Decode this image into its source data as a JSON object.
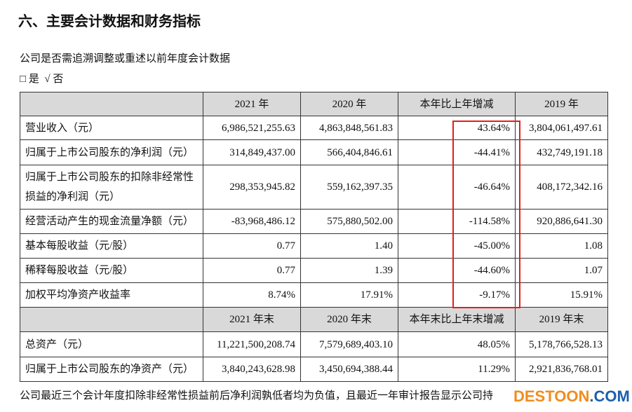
{
  "header": {
    "title": "六、主要会计数据和财务指标"
  },
  "question": "公司是否需追溯调整或重述以前年度会计数据",
  "options": {
    "yes_box": "□",
    "yes": "是",
    "no_check": "√",
    "no": "否"
  },
  "table": {
    "header1": [
      "2021 年",
      "2020 年",
      "本年比上年增减",
      "2019 年"
    ],
    "rows1": [
      [
        "营业收入（元）",
        "6,986,521,255.63",
        "4,863,848,561.83",
        "43.64%",
        "3,804,061,497.61"
      ],
      [
        "归属于上市公司股东的净利润（元）",
        "314,849,437.00",
        "566,404,846.61",
        "-44.41%",
        "432,749,191.18"
      ],
      [
        "归属于上市公司股东的扣除非经常性损益的净利润（元）",
        "298,353,945.82",
        "559,162,397.35",
        "-46.64%",
        "408,172,342.16"
      ],
      [
        "经营活动产生的现金流量净额（元）",
        "-83,968,486.12",
        "575,880,502.00",
        "-114.58%",
        "920,886,641.30"
      ],
      [
        "基本每股收益（元/股）",
        "0.77",
        "1.40",
        "-45.00%",
        "1.08"
      ],
      [
        "稀释每股收益（元/股）",
        "0.77",
        "1.39",
        "-44.60%",
        "1.07"
      ],
      [
        "加权平均净资产收益率",
        "8.74%",
        "17.91%",
        "-9.17%",
        "15.91%"
      ]
    ],
    "header2": [
      "2021 年末",
      "2020 年末",
      "本年末比上年末增减",
      "2019 年末"
    ],
    "rows2": [
      [
        "总资产（元）",
        "11,221,500,208.74",
        "7,579,689,403.10",
        "48.05%",
        "5,178,766,528.13"
      ],
      [
        "归属于上市公司股东的净资产（元）",
        "3,840,243,628.98",
        "3,450,694,388.44",
        "11.29%",
        "2,921,836,768.01"
      ]
    ]
  },
  "footnote": "公司最近三个会计年度扣除非经常性损益前后净利润孰低者均为负值，且最近一年审计报告显示公司持",
  "watermark": {
    "part1": "DESTOON",
    "part2": ".COM"
  }
}
